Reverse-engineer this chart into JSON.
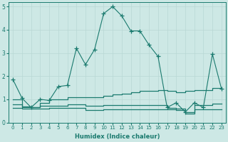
{
  "xlabel": "Humidex (Indice chaleur)",
  "background_color": "#cde8e5",
  "grid_color": "#b8d8d4",
  "line_color": "#1a7a6e",
  "xlim": [
    -0.5,
    23.5
  ],
  "ylim": [
    0,
    5.2
  ],
  "xticks": [
    0,
    1,
    2,
    3,
    4,
    5,
    6,
    7,
    8,
    9,
    10,
    11,
    12,
    13,
    14,
    15,
    16,
    17,
    18,
    19,
    20,
    21,
    22,
    23
  ],
  "yticks": [
    0,
    1,
    2,
    3,
    4,
    5
  ],
  "line1_x": [
    0,
    1,
    2,
    3,
    4,
    5,
    6,
    7,
    8,
    9,
    10,
    11,
    12,
    13,
    14,
    15,
    16,
    17,
    18,
    19,
    20,
    21,
    22,
    23
  ],
  "line1_y": [
    1.85,
    1.05,
    0.65,
    1.0,
    0.95,
    1.55,
    1.6,
    3.2,
    2.5,
    3.15,
    4.7,
    5.0,
    4.6,
    3.95,
    3.95,
    3.35,
    2.85,
    0.65,
    0.85,
    0.45,
    0.85,
    0.65,
    2.95,
    1.45
  ],
  "line2_x": [
    0,
    1,
    2,
    3,
    4,
    5,
    6,
    7,
    8,
    9,
    10,
    11,
    12,
    13,
    14,
    15,
    16,
    17,
    18,
    19,
    20,
    21,
    22,
    23
  ],
  "line2_y": [
    1.0,
    0.7,
    0.65,
    0.85,
    1.0,
    1.0,
    1.1,
    1.1,
    1.1,
    1.1,
    1.15,
    1.2,
    1.25,
    1.3,
    1.35,
    1.35,
    1.4,
    1.35,
    1.3,
    1.35,
    1.4,
    1.4,
    1.5,
    1.5
  ],
  "line3_x": [
    0,
    1,
    2,
    3,
    4,
    5,
    6,
    7,
    8,
    9,
    10,
    11,
    12,
    13,
    14,
    15,
    16,
    17,
    18,
    19,
    20,
    21,
    22,
    23
  ],
  "line3_y": [
    0.78,
    0.65,
    0.65,
    0.72,
    0.72,
    0.72,
    0.78,
    0.78,
    0.72,
    0.72,
    0.75,
    0.75,
    0.75,
    0.75,
    0.75,
    0.75,
    0.75,
    0.62,
    0.6,
    0.45,
    0.75,
    0.75,
    0.8,
    0.8
  ],
  "line4_x": [
    0,
    1,
    2,
    3,
    4,
    5,
    6,
    7,
    8,
    9,
    10,
    11,
    12,
    13,
    14,
    15,
    16,
    17,
    18,
    19,
    20,
    21,
    22,
    23
  ],
  "line4_y": [
    0.62,
    0.6,
    0.6,
    0.6,
    0.62,
    0.62,
    0.62,
    0.62,
    0.55,
    0.55,
    0.57,
    0.57,
    0.57,
    0.57,
    0.57,
    0.57,
    0.57,
    0.57,
    0.55,
    0.38,
    0.57,
    0.57,
    0.58,
    0.58
  ]
}
